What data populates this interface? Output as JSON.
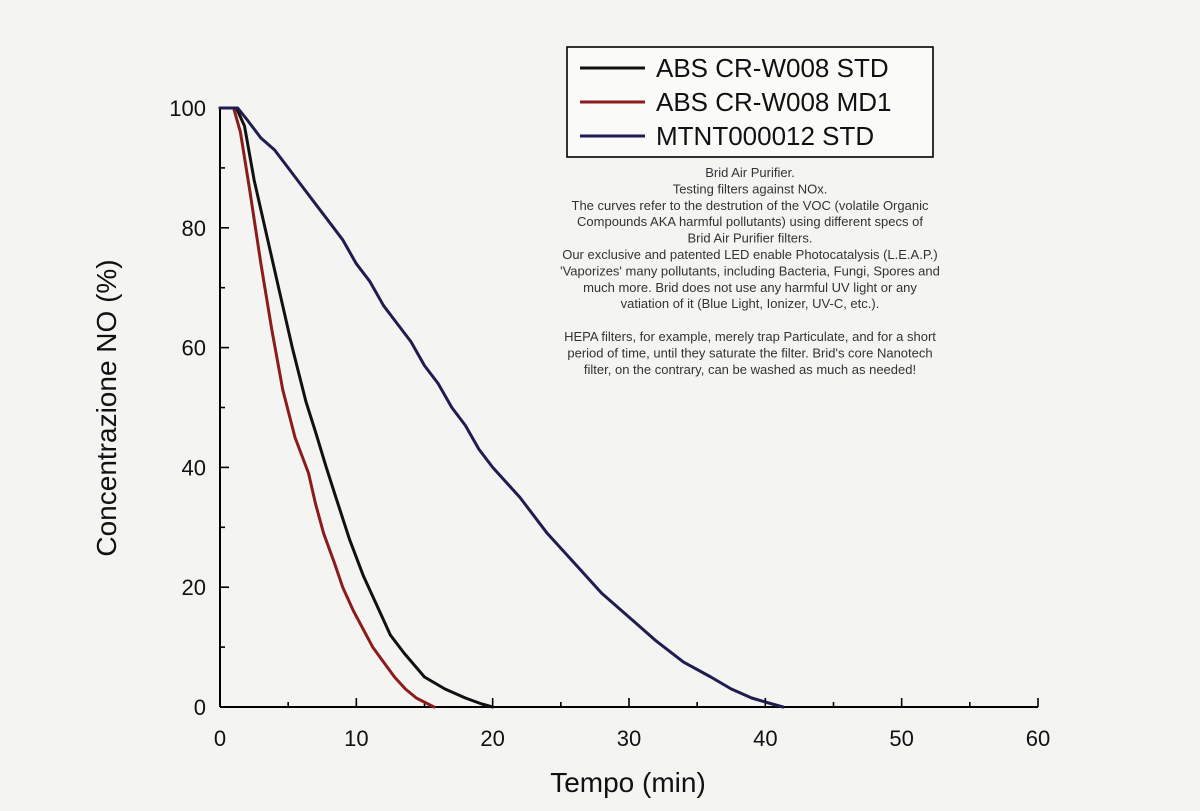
{
  "chart_data": {
    "type": "line",
    "xlabel": "Tempo (min)",
    "ylabel": "Concentrazione NO (%)",
    "xlim": [
      0,
      60
    ],
    "ylim": [
      0,
      100
    ],
    "xticks": [
      0,
      10,
      20,
      30,
      40,
      50,
      60
    ],
    "yticks": [
      0,
      20,
      40,
      60,
      80,
      100
    ],
    "grid": false,
    "legend_position": "top-right",
    "series": [
      {
        "name": "ABS CR-W008 STD",
        "color": "#111111",
        "x": [
          0,
          1.2,
          1.8,
          2.5,
          3.3,
          4.3,
          5.3,
          6.3,
          7.0,
          7.8,
          8.5,
          9.5,
          10.5,
          11.5,
          12.5,
          13.5,
          15.0,
          16.5,
          18.0,
          19.2,
          20.0
        ],
        "y": [
          100,
          100,
          97,
          88,
          80,
          70,
          60,
          51,
          46,
          40,
          35,
          28,
          22,
          17,
          12,
          9,
          5,
          3,
          1.5,
          0.5,
          0
        ]
      },
      {
        "name": "ABS CR-W008 MD1",
        "color": "#8b1c1c",
        "x": [
          0,
          1.0,
          1.5,
          2.2,
          3.0,
          3.8,
          4.6,
          5.5,
          6.5,
          7.0,
          7.6,
          8.4,
          9.0,
          9.8,
          10.5,
          11.2,
          12.0,
          12.8,
          13.6,
          14.4,
          15.0,
          15.7
        ],
        "y": [
          100,
          100,
          96,
          86,
          74,
          63,
          53,
          45,
          39,
          34,
          29,
          24,
          20,
          16,
          13,
          10,
          7.5,
          5,
          3,
          1.5,
          0.8,
          0
        ]
      },
      {
        "name": "MTNT000012 STD",
        "color": "#1f1d4f",
        "x": [
          0,
          1.3,
          2.0,
          3.0,
          4.0,
          5.0,
          6.0,
          7.0,
          8.0,
          9.0,
          10.0,
          11.0,
          12.0,
          13.0,
          14.0,
          15.0,
          16.0,
          17.0,
          18.0,
          19.0,
          20.0,
          22.0,
          24.0,
          26.0,
          28.0,
          30.0,
          32.0,
          34.0,
          36.0,
          37.5,
          39.0,
          40.5,
          41.3
        ],
        "y": [
          100,
          100,
          98,
          95,
          93,
          90,
          87,
          84,
          81,
          78,
          74,
          71,
          67,
          64,
          61,
          57,
          54,
          50,
          47,
          43,
          40,
          35,
          29,
          24,
          19,
          15,
          11,
          7.5,
          5,
          3,
          1.5,
          0.5,
          0
        ]
      }
    ],
    "annotation_lines": [
      "Brid Air Purifier.",
      "Testing filters against NOx.",
      "The curves refer to the destrution of the VOC (volatile Organic",
      "Compounds AKA harmful pollutants) using different specs of",
      "Brid Air Purifier filters.",
      "Our exclusive and patented LED enable Photocatalysis (L.E.A.P.)",
      "'Vaporizes' many pollutants, including Bacteria, Fungi, Spores and",
      "much more. Brid does not use any harmful UV light or any",
      "vatiation of it (Blue Light, Ionizer, UV-C, etc.).",
      "",
      "HEPA filters, for example, merely trap Particulate, and for a short",
      "period of time, until they saturate the filter. Brid's core Nanotech",
      "filter, on the contrary, can be washed as much as needed!"
    ]
  }
}
